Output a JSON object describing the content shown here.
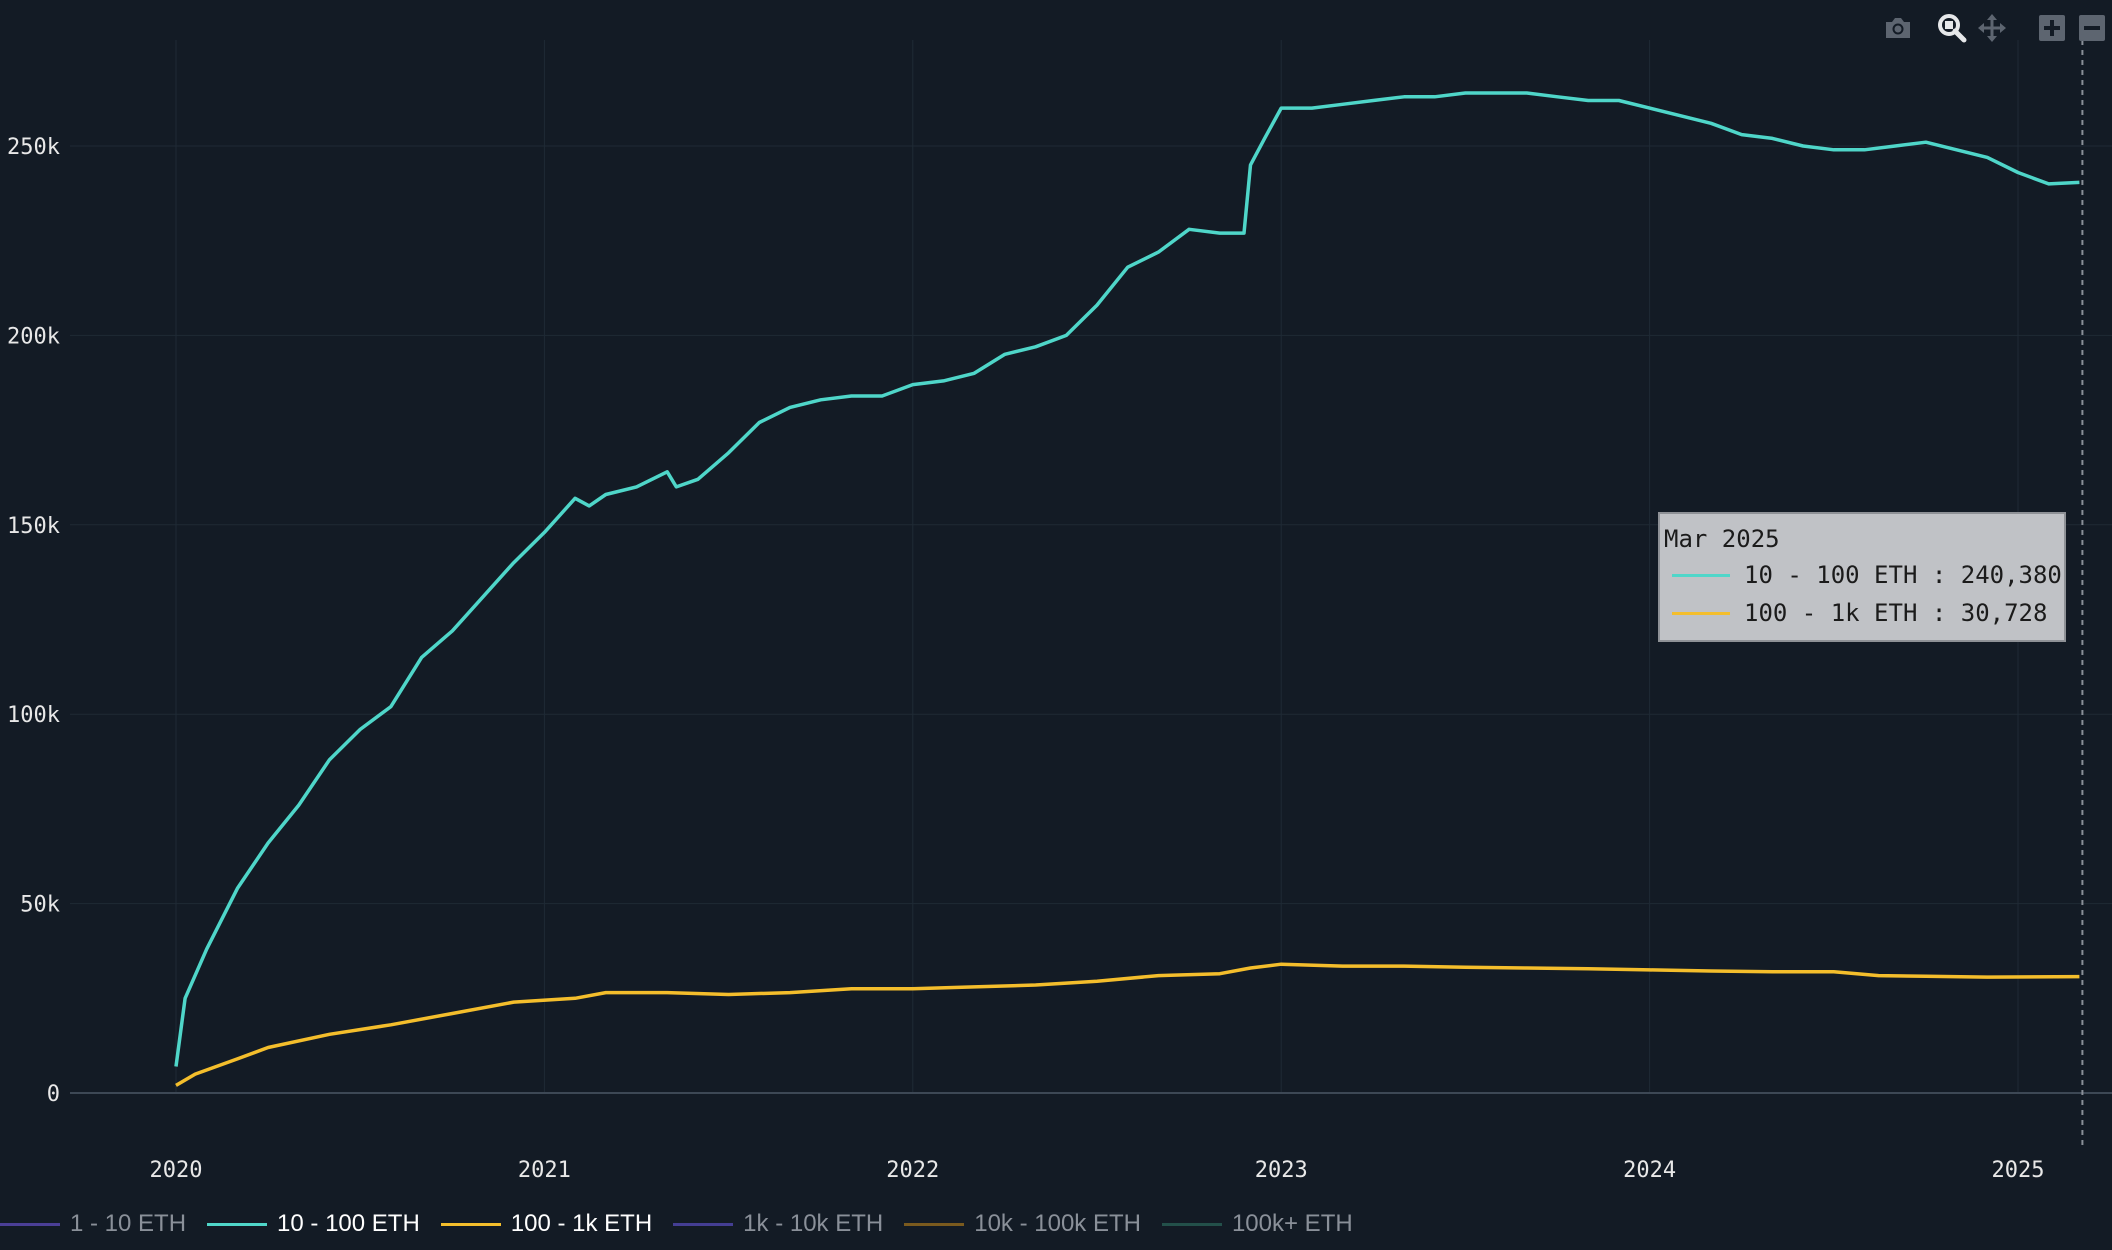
{
  "chart_data": {
    "type": "line",
    "x_ticks": [
      "2020",
      "2021",
      "2022",
      "2023",
      "2024",
      "2025"
    ],
    "y_ticks": [
      "0",
      "50k",
      "100k",
      "150k",
      "200k",
      "250k"
    ],
    "ylim": [
      0,
      282000
    ],
    "xlim": [
      "2019-09",
      "2025-04"
    ],
    "grid": true,
    "legend_position": "bottom",
    "series": [
      {
        "name": "10 - 100 ETH",
        "color": "#4fd6c9",
        "points": [
          [
            "2020-01-01",
            7000
          ],
          [
            "2020-01-10",
            25000
          ],
          [
            "2020-02-01",
            38000
          ],
          [
            "2020-03-01",
            54000
          ],
          [
            "2020-04-01",
            66000
          ],
          [
            "2020-05-01",
            76000
          ],
          [
            "2020-06-01",
            88000
          ],
          [
            "2020-07-01",
            96000
          ],
          [
            "2020-08-01",
            102000
          ],
          [
            "2020-09-01",
            115000
          ],
          [
            "2020-10-01",
            122000
          ],
          [
            "2020-11-01",
            131000
          ],
          [
            "2020-12-01",
            140000
          ],
          [
            "2021-01-01",
            148000
          ],
          [
            "2021-02-01",
            157000
          ],
          [
            "2021-02-15",
            155000
          ],
          [
            "2021-03-01",
            158000
          ],
          [
            "2021-04-01",
            160000
          ],
          [
            "2021-05-01",
            164000
          ],
          [
            "2021-05-10",
            160000
          ],
          [
            "2021-06-01",
            162000
          ],
          [
            "2021-07-01",
            169000
          ],
          [
            "2021-08-01",
            177000
          ],
          [
            "2021-09-01",
            181000
          ],
          [
            "2021-10-01",
            183000
          ],
          [
            "2021-11-01",
            184000
          ],
          [
            "2021-12-01",
            184000
          ],
          [
            "2022-01-01",
            187000
          ],
          [
            "2022-02-01",
            188000
          ],
          [
            "2022-03-01",
            190000
          ],
          [
            "2022-04-01",
            195000
          ],
          [
            "2022-05-01",
            197000
          ],
          [
            "2022-06-01",
            200000
          ],
          [
            "2022-07-01",
            208000
          ],
          [
            "2022-08-01",
            218000
          ],
          [
            "2022-09-01",
            222000
          ],
          [
            "2022-10-01",
            228000
          ],
          [
            "2022-11-01",
            227000
          ],
          [
            "2022-11-25",
            227000
          ],
          [
            "2022-12-01",
            245000
          ],
          [
            "2022-12-15",
            252000
          ],
          [
            "2023-01-01",
            260000
          ],
          [
            "2023-02-01",
            260000
          ],
          [
            "2023-03-01",
            261000
          ],
          [
            "2023-04-01",
            262000
          ],
          [
            "2023-05-01",
            263000
          ],
          [
            "2023-06-01",
            263000
          ],
          [
            "2023-07-01",
            264000
          ],
          [
            "2023-08-01",
            264000
          ],
          [
            "2023-09-01",
            264000
          ],
          [
            "2023-10-01",
            263000
          ],
          [
            "2023-11-01",
            262000
          ],
          [
            "2023-12-01",
            262000
          ],
          [
            "2024-01-01",
            260000
          ],
          [
            "2024-02-01",
            258000
          ],
          [
            "2024-03-01",
            256000
          ],
          [
            "2024-04-01",
            253000
          ],
          [
            "2024-05-01",
            252000
          ],
          [
            "2024-06-01",
            250000
          ],
          [
            "2024-07-01",
            249000
          ],
          [
            "2024-08-01",
            249000
          ],
          [
            "2024-09-01",
            250000
          ],
          [
            "2024-10-01",
            251000
          ],
          [
            "2024-11-01",
            249000
          ],
          [
            "2024-12-01",
            247000
          ],
          [
            "2025-01-01",
            243000
          ],
          [
            "2025-02-01",
            240000
          ],
          [
            "2025-03-01",
            240380
          ]
        ]
      },
      {
        "name": "100 - 1k ETH",
        "color": "#f4be2c",
        "points": [
          [
            "2020-01-01",
            2000
          ],
          [
            "2020-01-20",
            5000
          ],
          [
            "2020-03-01",
            9000
          ],
          [
            "2020-04-01",
            12000
          ],
          [
            "2020-06-01",
            15500
          ],
          [
            "2020-08-01",
            18000
          ],
          [
            "2020-10-01",
            21000
          ],
          [
            "2020-12-01",
            24000
          ],
          [
            "2021-02-01",
            25000
          ],
          [
            "2021-03-01",
            26500
          ],
          [
            "2021-05-01",
            26500
          ],
          [
            "2021-07-01",
            26000
          ],
          [
            "2021-09-01",
            26500
          ],
          [
            "2021-11-01",
            27500
          ],
          [
            "2022-01-01",
            27500
          ],
          [
            "2022-03-01",
            28000
          ],
          [
            "2022-05-01",
            28500
          ],
          [
            "2022-07-01",
            29500
          ],
          [
            "2022-09-01",
            31000
          ],
          [
            "2022-11-01",
            31500
          ],
          [
            "2022-12-01",
            33000
          ],
          [
            "2023-01-01",
            34000
          ],
          [
            "2023-03-01",
            33500
          ],
          [
            "2023-05-01",
            33500
          ],
          [
            "2023-07-01",
            33200
          ],
          [
            "2023-09-01",
            33000
          ],
          [
            "2023-11-01",
            32800
          ],
          [
            "2024-01-01",
            32500
          ],
          [
            "2024-03-01",
            32200
          ],
          [
            "2024-05-01",
            32000
          ],
          [
            "2024-07-01",
            32000
          ],
          [
            "2024-08-15",
            31000
          ],
          [
            "2024-10-01",
            30800
          ],
          [
            "2024-12-01",
            30600
          ],
          [
            "2025-03-01",
            30728
          ]
        ]
      }
    ],
    "legend": [
      {
        "name": "1 - 10 ETH",
        "color": "#4b3f96",
        "visible": false
      },
      {
        "name": "10 - 100 ETH",
        "color": "#4fd6c9",
        "visible": true
      },
      {
        "name": "100 - 1k ETH",
        "color": "#f4be2c",
        "visible": true
      },
      {
        "name": "1k - 10k ETH",
        "color": "#443e93",
        "visible": false
      },
      {
        "name": "10k - 100k ETH",
        "color": "#7a5a1e",
        "visible": false
      },
      {
        "name": "100k+ ETH",
        "color": "#23504a",
        "visible": false
      }
    ],
    "hover": {
      "date": "2025-03-01",
      "title": "Mar 2025",
      "rows": [
        {
          "label": "10 - 100 ETH : 240,380",
          "color": "#4fd6c9"
        },
        {
          "label": "100 - 1k ETH : 30,728",
          "color": "#f4be2c"
        }
      ]
    }
  },
  "toolbar": {
    "icons": [
      "camera-icon",
      "zoom-icon",
      "pan-icon",
      "zoom-in-icon",
      "zoom-out-icon"
    ]
  }
}
